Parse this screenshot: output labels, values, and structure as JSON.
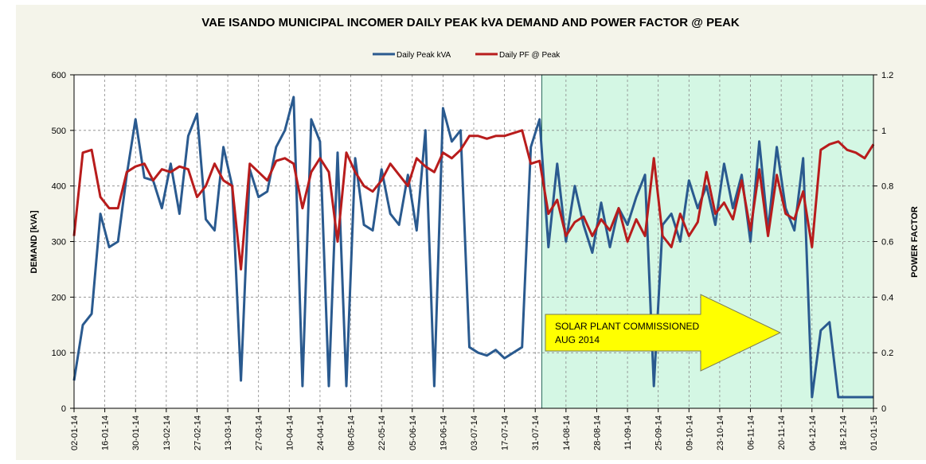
{
  "chart_data": {
    "type": "line",
    "title": "VAE ISANDO MUNICIPAL INCOMER DAILY PEAK kVA DEMAND AND POWER FACTOR @ PEAK",
    "y_label": "DEMAND [kVA]",
    "y2_label": "POWER FACTOR",
    "annotation": [
      "SOLAR PLANT COMMISSIONED",
      "AUG 2014"
    ],
    "highlight": {
      "from": "2014-08-03",
      "to": "2015-01-01",
      "color": "#d4f7e4"
    },
    "grid": true,
    "legend": "top",
    "x": [
      "2014-01-02",
      "2014-01-06",
      "2014-01-10",
      "2014-01-14",
      "2014-01-18",
      "2014-01-22",
      "2014-01-26",
      "2014-01-30",
      "2014-02-03",
      "2014-02-07",
      "2014-02-11",
      "2014-02-15",
      "2014-02-19",
      "2014-02-23",
      "2014-02-27",
      "2014-03-03",
      "2014-03-07",
      "2014-03-11",
      "2014-03-15",
      "2014-03-19",
      "2014-03-23",
      "2014-03-27",
      "2014-03-31",
      "2014-04-04",
      "2014-04-08",
      "2014-04-12",
      "2014-04-16",
      "2014-04-20",
      "2014-04-24",
      "2014-04-28",
      "2014-05-02",
      "2014-05-06",
      "2014-05-10",
      "2014-05-14",
      "2014-05-18",
      "2014-05-22",
      "2014-05-26",
      "2014-05-30",
      "2014-06-03",
      "2014-06-07",
      "2014-06-11",
      "2014-06-15",
      "2014-06-19",
      "2014-06-23",
      "2014-06-27",
      "2014-07-01",
      "2014-07-05",
      "2014-07-09",
      "2014-07-13",
      "2014-07-17",
      "2014-07-21",
      "2014-07-25",
      "2014-07-29",
      "2014-08-02",
      "2014-08-06",
      "2014-08-10",
      "2014-08-14",
      "2014-08-18",
      "2014-08-22",
      "2014-08-26",
      "2014-08-30",
      "2014-09-03",
      "2014-09-07",
      "2014-09-11",
      "2014-09-15",
      "2014-09-19",
      "2014-09-23",
      "2014-09-27",
      "2014-10-01",
      "2014-10-05",
      "2014-10-09",
      "2014-10-13",
      "2014-10-17",
      "2014-10-21",
      "2014-10-25",
      "2014-10-29",
      "2014-11-02",
      "2014-11-06",
      "2014-11-10",
      "2014-11-14",
      "2014-11-18",
      "2014-11-22",
      "2014-11-26",
      "2014-11-30",
      "2014-12-04",
      "2014-12-08",
      "2014-12-12",
      "2014-12-16",
      "2014-12-20",
      "2014-12-24",
      "2014-12-28",
      "2015-01-01"
    ],
    "series": [
      {
        "name": "Daily Peak kVA",
        "color": "#2a5a8f",
        "values": [
          50,
          150,
          170,
          350,
          290,
          300,
          420,
          520,
          415,
          410,
          360,
          440,
          350,
          490,
          530,
          340,
          320,
          470,
          400,
          50,
          430,
          380,
          390,
          470,
          500,
          560,
          40,
          520,
          480,
          40,
          460,
          40,
          450,
          330,
          320,
          430,
          350,
          330,
          420,
          320,
          500,
          40,
          540,
          480,
          500,
          110,
          100,
          95,
          105,
          90,
          100,
          110,
          470,
          520,
          290,
          440,
          300,
          400,
          330,
          280,
          370,
          290,
          360,
          330,
          380,
          420,
          40,
          330,
          350,
          300,
          410,
          360,
          400,
          330,
          440,
          360,
          420,
          300,
          480,
          320,
          470,
          360,
          320,
          450,
          20,
          140,
          155,
          20,
          20,
          20,
          20,
          20
        ]
      },
      {
        "name": "Daily PF @ Peak",
        "color": "#b81c1c",
        "axis": "y2",
        "values": [
          0.62,
          0.92,
          0.93,
          0.76,
          0.72,
          0.72,
          0.85,
          0.87,
          0.88,
          0.82,
          0.86,
          0.85,
          0.87,
          0.86,
          0.76,
          0.8,
          0.88,
          0.82,
          0.8,
          0.5,
          0.88,
          0.85,
          0.82,
          0.89,
          0.9,
          0.88,
          0.72,
          0.85,
          0.9,
          0.85,
          0.6,
          0.92,
          0.85,
          0.8,
          0.78,
          0.82,
          0.88,
          0.84,
          0.8,
          0.9,
          0.87,
          0.85,
          0.92,
          0.9,
          0.93,
          0.98,
          0.98,
          0.97,
          0.98,
          0.98,
          0.99,
          1.0,
          0.88,
          0.89,
          0.7,
          0.75,
          0.62,
          0.67,
          0.69,
          0.62,
          0.68,
          0.64,
          0.72,
          0.6,
          0.68,
          0.62,
          0.9,
          0.62,
          0.58,
          0.7,
          0.62,
          0.67,
          0.85,
          0.7,
          0.74,
          0.68,
          0.82,
          0.64,
          0.86,
          0.62,
          0.84,
          0.7,
          0.68,
          0.78,
          0.58,
          0.93,
          0.95,
          0.96,
          0.93,
          0.92,
          0.9,
          0.95
        ]
      }
    ],
    "xlim": [
      "2014-01-02",
      "2015-01-01"
    ],
    "xticks": [
      {
        "value": "2014-01-02",
        "label": "02-01-14"
      },
      {
        "value": "2014-01-16",
        "label": "16-01-14"
      },
      {
        "value": "2014-01-30",
        "label": "30-01-14"
      },
      {
        "value": "2014-02-13",
        "label": "13-02-14"
      },
      {
        "value": "2014-02-27",
        "label": "27-02-14"
      },
      {
        "value": "2014-03-13",
        "label": "13-03-14"
      },
      {
        "value": "2014-03-27",
        "label": "27-03-14"
      },
      {
        "value": "2014-04-10",
        "label": "10-04-14"
      },
      {
        "value": "2014-04-24",
        "label": "24-04-14"
      },
      {
        "value": "2014-05-08",
        "label": "08-05-14"
      },
      {
        "value": "2014-05-22",
        "label": "22-05-14"
      },
      {
        "value": "2014-06-05",
        "label": "05-06-14"
      },
      {
        "value": "2014-06-19",
        "label": "19-06-14"
      },
      {
        "value": "2014-07-03",
        "label": "03-07-14"
      },
      {
        "value": "2014-07-17",
        "label": "17-07-14"
      },
      {
        "value": "2014-07-31",
        "label": "31-07-14"
      },
      {
        "value": "2014-08-14",
        "label": "14-08-14"
      },
      {
        "value": "2014-08-28",
        "label": "28-08-14"
      },
      {
        "value": "2014-09-11",
        "label": "11-09-14"
      },
      {
        "value": "2014-09-25",
        "label": "25-09-14"
      },
      {
        "value": "2014-10-09",
        "label": "09-10-14"
      },
      {
        "value": "2014-10-23",
        "label": "23-10-14"
      },
      {
        "value": "2014-11-06",
        "label": "06-11-14"
      },
      {
        "value": "2014-11-20",
        "label": "20-11-14"
      },
      {
        "value": "2014-12-04",
        "label": "04-12-14"
      },
      {
        "value": "2014-12-18",
        "label": "18-12-14"
      },
      {
        "value": "2015-01-01",
        "label": "01-01-15"
      }
    ],
    "ylim": [
      0,
      600
    ],
    "yticks": [
      0,
      100,
      200,
      300,
      400,
      500,
      600
    ],
    "y2lim": [
      0,
      1.2
    ],
    "y2ticks": [
      0,
      0.2,
      0.4,
      0.6,
      0.8,
      1,
      1.2
    ]
  }
}
